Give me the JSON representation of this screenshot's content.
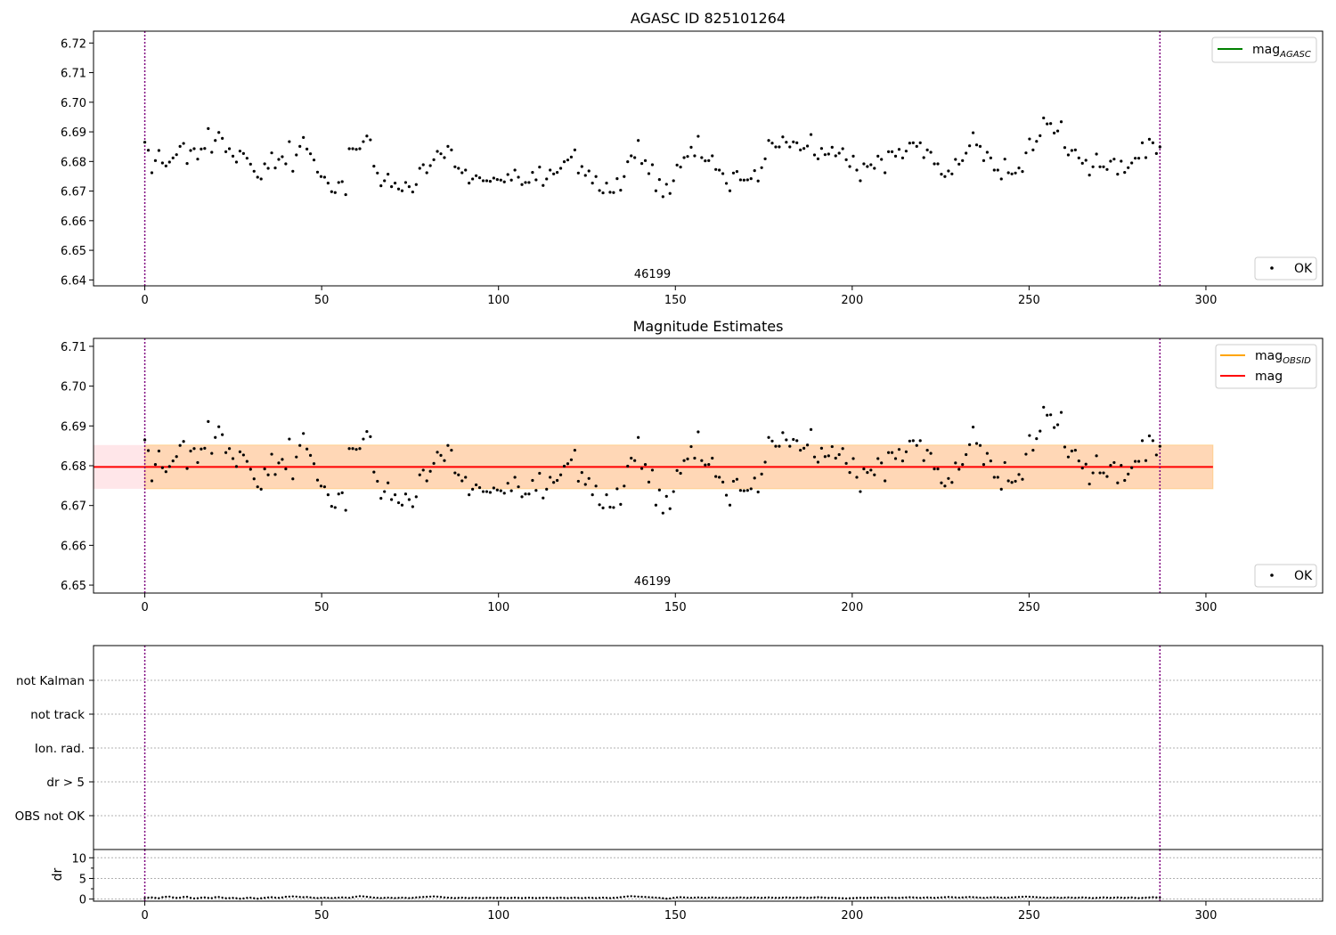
{
  "panels": {
    "top": {
      "title": "AGASC ID 825101264",
      "ylim": [
        6.638,
        6.724
      ],
      "yticks": [
        "6.64",
        "6.65",
        "6.66",
        "6.67",
        "6.68",
        "6.69",
        "6.70",
        "6.71",
        "6.72"
      ],
      "obsid_label": "46199",
      "legend": {
        "line_main": "mag",
        "line_sub": "AGASC",
        "line_color": "#008000",
        "points": "OK"
      }
    },
    "mid": {
      "title": "Magnitude Estimates",
      "ylim": [
        6.648,
        6.712
      ],
      "yticks": [
        "6.65",
        "6.66",
        "6.67",
        "6.68",
        "6.69",
        "6.70",
        "6.71"
      ],
      "obsid_label": "46199",
      "mag_line": 6.6797,
      "band_inner": [
        6.6742,
        6.6852
      ],
      "band_color_outer": "#ffb6c1",
      "band_color_inner": "#ffa500",
      "legend": {
        "items": [
          {
            "main": "mag",
            "sub": "OBSID",
            "color": "#ffa500"
          },
          {
            "main": "mag",
            "sub": "",
            "color": "#ff0000"
          }
        ],
        "points": "OK"
      }
    },
    "flags": {
      "labels": [
        "not Kalman",
        "not track",
        "Ion. rad.",
        "dr > 5",
        "OBS not OK"
      ]
    },
    "dr": {
      "ylabel": "dr",
      "ylim": [
        -0.5,
        12
      ],
      "yticks": [
        "0",
        "5",
        "10"
      ]
    }
  },
  "xaxis": {
    "xlim": [
      -14.5,
      333
    ],
    "xticks": [
      "0",
      "50",
      "100",
      "150",
      "200",
      "250",
      "300"
    ]
  },
  "obs_boundaries": [
    0,
    287
  ],
  "colors": {
    "boundary": "#800080",
    "points": "#000000",
    "mag_line": "#ff0000"
  },
  "chart_data": {
    "type": "scatter",
    "xlabel": "",
    "ylabel": "",
    "series": [
      {
        "name": "OK",
        "x_range": [
          0,
          287
        ],
        "y": [
          6.6865,
          6.6838,
          6.6762,
          6.6803,
          6.6837,
          6.6795,
          6.6785,
          6.6798,
          6.6812,
          6.6823,
          6.6851,
          6.6861,
          6.6793,
          6.6837,
          6.6843,
          6.6808,
          6.6842,
          6.6844,
          6.6911,
          6.6831,
          6.6871,
          6.6898,
          6.6878,
          6.6833,
          6.6843,
          6.6818,
          6.6798,
          6.6835,
          6.6827,
          6.6811,
          6.6791,
          6.6767,
          6.6747,
          6.6741,
          6.6792,
          6.6777,
          6.6829,
          6.6778,
          6.6807,
          6.6816,
          6.6792,
          6.6867,
          6.6767,
          6.6822,
          6.6851,
          6.6881,
          6.6842,
          6.6826,
          6.6805,
          6.6764,
          6.6749,
          6.6747,
          6.6727,
          6.6698,
          6.6695,
          6.6729,
          6.6732,
          6.6688,
          6.6843,
          6.6843,
          6.6841,
          6.6843,
          6.6867,
          6.6886,
          6.6873,
          6.6784,
          6.6761,
          6.6718,
          6.6735,
          6.6757,
          6.6715,
          6.6727,
          6.6707,
          6.6701,
          6.6729,
          6.6715,
          6.6697,
          6.6722,
          6.6777,
          6.6789,
          6.6762,
          6.6786,
          6.6806,
          6.6834,
          6.6826,
          6.6813,
          6.6851,
          6.6839,
          6.6782,
          6.6777,
          6.6762,
          6.6771,
          6.6727,
          6.6741,
          6.6752,
          6.6745,
          6.6735,
          6.6735,
          6.6733,
          6.6744,
          6.6739,
          6.6737,
          6.6731,
          6.6756,
          6.6737,
          6.6771,
          6.6747,
          6.6722,
          6.6729,
          6.6729,
          6.6763,
          6.6738,
          6.6781,
          6.6719,
          6.6741,
          6.6771,
          6.6758,
          6.6763,
          6.6777,
          6.6799,
          6.6805,
          6.6815,
          6.6839,
          6.6761,
          6.6783,
          6.6753,
          6.6768,
          6.6727,
          6.6749,
          6.6702,
          6.6694,
          6.6727,
          6.6696,
          6.6695,
          6.6742,
          6.6703,
          6.6749,
          6.6799,
          6.6819,
          6.6813,
          6.6871,
          6.6793,
          6.6803,
          6.6759,
          6.6789,
          6.6701,
          6.6739,
          6.6681,
          6.6723,
          6.6692,
          6.6735,
          6.6788,
          6.6781,
          6.6813,
          6.6817,
          6.6848,
          6.6819,
          6.6885,
          6.6813,
          6.6802,
          6.6803,
          6.6819,
          6.6773,
          6.6771,
          6.6759,
          6.6726,
          6.6701,
          6.6761,
          6.6766,
          6.6738,
          6.6737,
          6.6738,
          6.6742,
          6.6769,
          6.6734,
          6.6779,
          6.6809,
          6.6871,
          6.6862,
          6.6849,
          6.6849,
          6.6883,
          6.6865,
          6.6849,
          6.6866,
          6.6863,
          6.6839,
          6.6844,
          6.6852,
          6.6891,
          6.6822,
          6.6809,
          6.6844,
          6.6823,
          6.6825,
          6.6848,
          6.6819,
          6.6828,
          6.6843,
          6.6806,
          6.6783,
          6.6818,
          6.6771,
          6.6735,
          6.6792,
          6.6783,
          6.6789,
          6.6777,
          6.6818,
          6.6807,
          6.6762,
          6.6833,
          6.6833,
          6.6818,
          6.6841,
          6.6812,
          6.6835,
          6.6862,
          6.6863,
          6.6851,
          6.6863,
          6.6813,
          6.6839,
          6.6831,
          6.6792,
          6.6792,
          6.6757,
          6.6749,
          6.6768,
          6.6758,
          6.6807,
          6.6791,
          6.6803,
          6.6828,
          6.6853,
          6.6897,
          6.6856,
          6.6851,
          6.6803,
          6.6831,
          6.6812,
          6.6771,
          6.6771,
          6.6741,
          6.6808,
          6.6762,
          6.6758,
          6.6761,
          6.6778,
          6.6766,
          6.6829,
          6.6876,
          6.6839,
          6.6868,
          6.6887,
          6.6947,
          6.6927,
          6.6928,
          6.6896,
          6.6903,
          6.6934,
          6.6847,
          6.6822,
          6.6837,
          6.6839,
          6.6812,
          6.6794,
          6.6804,
          6.6754,
          6.6782,
          6.6825,
          6.6782,
          6.6782,
          6.6773,
          6.6801,
          6.6808,
          6.6757,
          6.6801,
          6.6763,
          6.6779,
          6.6795,
          6.6811,
          6.6811,
          6.6863,
          6.6813,
          6.6875,
          6.6863,
          6.6827,
          6.6849
        ]
      }
    ],
    "dr_values_note": "dr",
    "dr": [
      0.25,
      0.35,
      0.4,
      0.3,
      0.2,
      0.45,
      0.55,
      0.6,
      0.4,
      0.3,
      0.35,
      0.5,
      0.55,
      0.3,
      0.15,
      0.2,
      0.35,
      0.4,
      0.3,
      0.25,
      0.45,
      0.5,
      0.35,
      0.2,
      0.25,
      0.3,
      0.2,
      0.1,
      0.15,
      0.3,
      0.35,
      0.2,
      0.1,
      0.2,
      0.3,
      0.4,
      0.45,
      0.35,
      0.3,
      0.4,
      0.55,
      0.6,
      0.65,
      0.6,
      0.5,
      0.45,
      0.5,
      0.4,
      0.3,
      0.25,
      0.3,
      0.35,
      0.3,
      0.25,
      0.3,
      0.35,
      0.4,
      0.35,
      0.3,
      0.45,
      0.6,
      0.7,
      0.65,
      0.55,
      0.45,
      0.35,
      0.3,
      0.25,
      0.3,
      0.35,
      0.3,
      0.25,
      0.3,
      0.35,
      0.3,
      0.25,
      0.3,
      0.4,
      0.45,
      0.5,
      0.55,
      0.6,
      0.65,
      0.6,
      0.5,
      0.4,
      0.35,
      0.3,
      0.25,
      0.3,
      0.35,
      0.3,
      0.25,
      0.3,
      0.35,
      0.3,
      0.25,
      0.3,
      0.35,
      0.3,
      0.3,
      0.35,
      0.3,
      0.25,
      0.3,
      0.35,
      0.3,
      0.25,
      0.3,
      0.35,
      0.3,
      0.25,
      0.3,
      0.3,
      0.35,
      0.3,
      0.25,
      0.3,
      0.35,
      0.3,
      0.25,
      0.3,
      0.35,
      0.3,
      0.25,
      0.3,
      0.35,
      0.3,
      0.25,
      0.3,
      0.35,
      0.3,
      0.25,
      0.3,
      0.35,
      0.45,
      0.55,
      0.65,
      0.7,
      0.65,
      0.6,
      0.55,
      0.5,
      0.45,
      0.4,
      0.35,
      0.3,
      0.2,
      0.1,
      0.15,
      0.3,
      0.4,
      0.45,
      0.4,
      0.35,
      0.3,
      0.35,
      0.4,
      0.35,
      0.3,
      0.35,
      0.4,
      0.35,
      0.3,
      0.3,
      0.35,
      0.3,
      0.3,
      0.35,
      0.4,
      0.35,
      0.3,
      0.35,
      0.4,
      0.35,
      0.3,
      0.35,
      0.4,
      0.35,
      0.3,
      0.3,
      0.35,
      0.4,
      0.35,
      0.3,
      0.35,
      0.4,
      0.35,
      0.3,
      0.35,
      0.4,
      0.45,
      0.4,
      0.35,
      0.3,
      0.35,
      0.3,
      0.25,
      0.2,
      0.15,
      0.2,
      0.25,
      0.3,
      0.35,
      0.3,
      0.3,
      0.35,
      0.4,
      0.35,
      0.3,
      0.35,
      0.4,
      0.35,
      0.3,
      0.3,
      0.35,
      0.4,
      0.45,
      0.4,
      0.35,
      0.3,
      0.35,
      0.4,
      0.35,
      0.3,
      0.35,
      0.4,
      0.45,
      0.5,
      0.45,
      0.4,
      0.35,
      0.4,
      0.45,
      0.5,
      0.45,
      0.4,
      0.35,
      0.3,
      0.35,
      0.4,
      0.45,
      0.4,
      0.35,
      0.3,
      0.35,
      0.4,
      0.45,
      0.5,
      0.55,
      0.6,
      0.55,
      0.5,
      0.45,
      0.4,
      0.35,
      0.3,
      0.35,
      0.4,
      0.35,
      0.3,
      0.35,
      0.4,
      0.35,
      0.3,
      0.35,
      0.4,
      0.35,
      0.3,
      0.25,
      0.3,
      0.35,
      0.4,
      0.35,
      0.3,
      0.35,
      0.4,
      0.35,
      0.3,
      0.35,
      0.4,
      0.3,
      0.25,
      0.3,
      0.35,
      0.4,
      0.45,
      0.4,
      0.35
    ]
  }
}
